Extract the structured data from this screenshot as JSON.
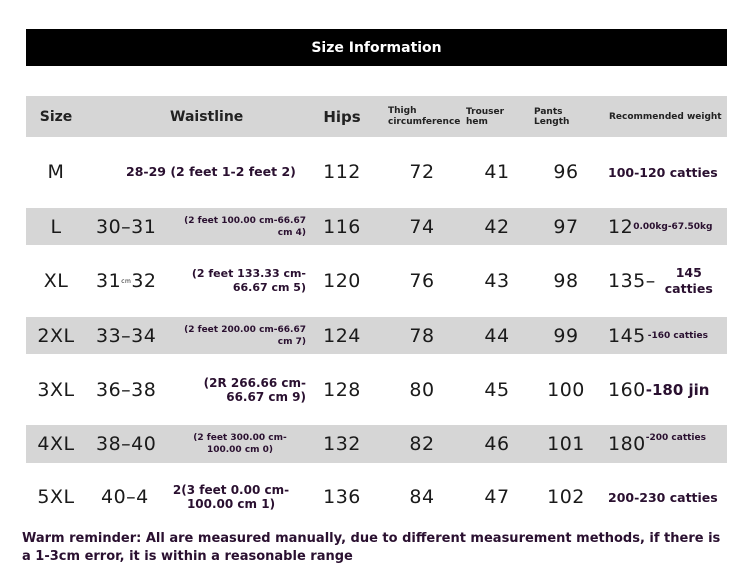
{
  "title": "Size Information",
  "headers": {
    "size": "Size",
    "waistline": "Waistline",
    "hips": "Hips",
    "thigh": "Thigh circumference",
    "hem": "Trouser hem",
    "length": "Pants Length",
    "weight": "Recommended weight"
  },
  "rows": [
    {
      "size": "M",
      "waist_a": "",
      "waist_b": "28-29 (2 feet 1-2 feet 2)",
      "hips": "112",
      "thigh": "72",
      "hem": "41",
      "length": "96",
      "weight_a": "",
      "weight_b": "100-120 catties"
    },
    {
      "size": "L",
      "waist_a": "30–31",
      "waist_b": "(2 feet 100.00 cm-66.67 cm 4)",
      "hips": "116",
      "thigh": "74",
      "hem": "42",
      "length": "97",
      "weight_a": "12",
      "weight_b": "0.00kg-67.50kg"
    },
    {
      "size": "XL",
      "waist_a": "31",
      "waist_mid": "cm",
      "waist_a2": "32",
      "waist_b": "(2 feet 133.33 cm-66.67 cm 5)",
      "hips": "120",
      "thigh": "76",
      "hem": "43",
      "length": "98",
      "weight_a": "135–",
      "weight_b": "145 catties"
    },
    {
      "size": "2XL",
      "waist_a": "33–34",
      "waist_b": "(2 feet 200.00 cm-66.67 cm 7)",
      "hips": "124",
      "thigh": "78",
      "hem": "44",
      "length": "99",
      "weight_a": "145",
      "weight_b": "-160 catties"
    },
    {
      "size": "3XL",
      "waist_a": "36–38",
      "waist_b": "(2R 266.66 cm-66.67 cm 9)",
      "hips": "128",
      "thigh": "80",
      "hem": "45",
      "length": "100",
      "weight_a": "160",
      "weight_b": "-180 jin"
    },
    {
      "size": "4XL",
      "waist_a": "38–40",
      "waist_b": "(2 feet 300.00 cm-100.00 cm 0)",
      "hips": "132",
      "thigh": "82",
      "hem": "46",
      "length": "101",
      "weight_a": "180",
      "weight_b": "-200 catties"
    },
    {
      "size": "5XL",
      "waist_a": "40–4",
      "waist_b": "2(3 feet 0.00 cm-100.00 cm 1)",
      "hips": "136",
      "thigh": "84",
      "hem": "47",
      "length": "102",
      "weight_a": "",
      "weight_b": "200-230 catties"
    }
  ],
  "footer": "Warm reminder: All are measured manually, due to different measurement methods, if there is a 1-3cm error, it is within a reasonable range"
}
